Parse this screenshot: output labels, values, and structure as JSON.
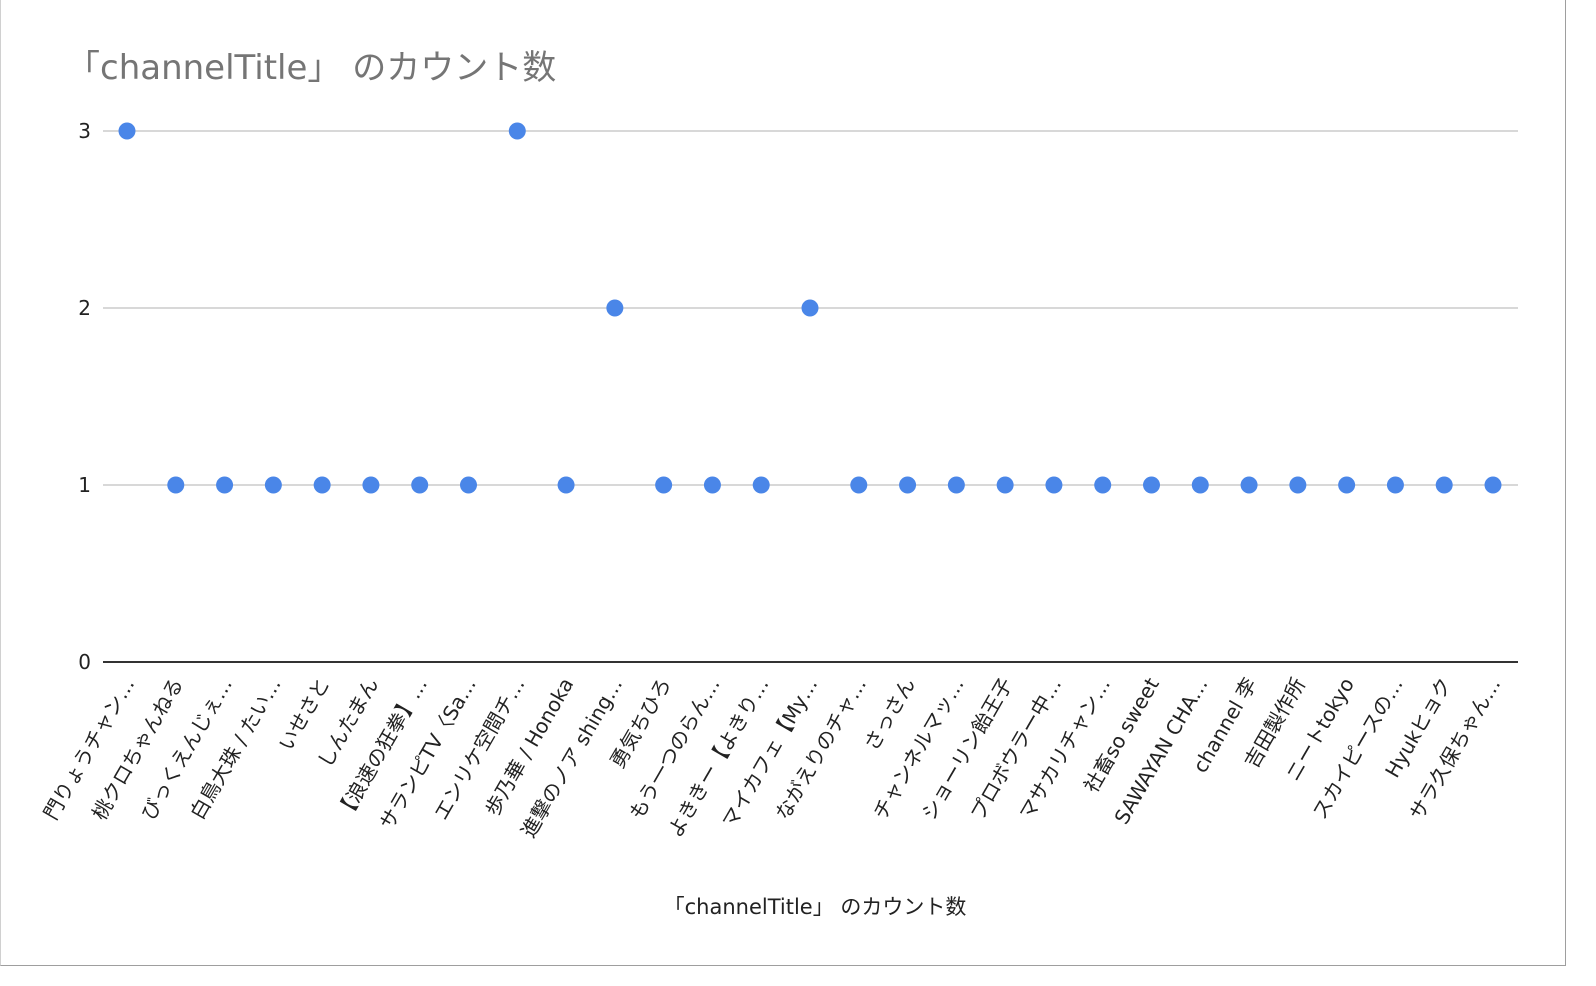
{
  "chart_data": {
    "type": "scatter",
    "title": "「channelTitle」 のカウント数",
    "xlabel": "「channelTitle」 のカウント数",
    "ylabel": "",
    "ylim": [
      0,
      3
    ],
    "yticks": [
      "0",
      "1",
      "2",
      "3"
    ],
    "grid": true,
    "legend": "none",
    "point_color": "#4a86e8",
    "categories": [
      "門りょうチャン…",
      "桃クロちゃんねる",
      "びっくえんじぇ…",
      "白鳥大珠 / たい…",
      "いせさと",
      "しんたまん",
      "【浪速の狂拳】…",
      "サランピTV〈Sa…",
      "エンリケ空間チ…",
      "歩乃華 / Honoka",
      "進撃のノア shing…",
      "勇気ちひろ",
      "もう一つのらん…",
      "よききー【よきり…",
      "マイカフェ【My…",
      "ながえりのチャ…",
      "さっさん",
      "チャンネルマッ…",
      "ショーリン飴王子",
      "プロボウラー中…",
      "マサカリチャン…",
      "社畜so sweet",
      "SAWAYAN CHA…",
      "channel 李",
      "吉田製作所",
      "ニートtokyo",
      "スカイピースの…",
      "Hyukヒョク",
      "サラ久保ちゃん…"
    ],
    "values": [
      3,
      1,
      1,
      1,
      1,
      1,
      1,
      1,
      3,
      1,
      2,
      1,
      1,
      1,
      2,
      1,
      1,
      1,
      1,
      1,
      1,
      1,
      1,
      1,
      1,
      1,
      1,
      1,
      1
    ]
  }
}
